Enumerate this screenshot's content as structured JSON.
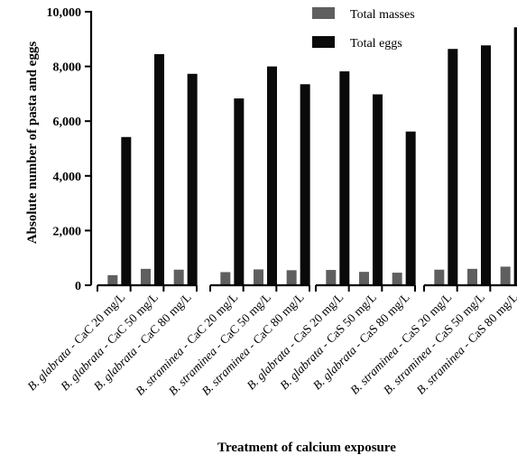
{
  "chart_data": {
    "type": "bar",
    "ylabel": "Absolute number of pasta and eggs",
    "xlabel": "Treatment of calcium exposure",
    "ylim": [
      0,
      10000
    ],
    "yticks": [
      0,
      2000,
      4000,
      6000,
      8000,
      10000
    ],
    "ytick_labels": [
      "0",
      "2,000",
      "4,000",
      "6,000",
      "8,000",
      "10,000"
    ],
    "legend_position": "top-right",
    "group_count": 4,
    "categories": [
      {
        "species": "B. glabrata",
        "treatment": " - CaC 20 mg/L"
      },
      {
        "species": "B. glabrata",
        "treatment": " - CaC 50 mg/L"
      },
      {
        "species": "B. glabrata",
        "treatment": " - CaC 80 mg/L"
      },
      {
        "species": "B. straminea",
        "treatment": " - CaC 20 mg/L"
      },
      {
        "species": "B. straminea",
        "treatment": " - CaC 50 mg/L"
      },
      {
        "species": "B. straminea",
        "treatment": " - CaC 80 mg/L"
      },
      {
        "species": "B. glabrata",
        "treatment": " - CaS 20 mg/L"
      },
      {
        "species": "B. glabrata",
        "treatment": " - CaS 50 mg/L"
      },
      {
        "species": "B. glabrata",
        "treatment": " - CaS 80 mg/L"
      },
      {
        "species": "B. straminea",
        "treatment": " - CaS 20 mg/L"
      },
      {
        "species": "B. straminea",
        "treatment": " - CaS 50 mg/L"
      },
      {
        "species": "B. straminea",
        "treatment": " - CaS 80 mg/L"
      }
    ],
    "series": [
      {
        "name": "Total masses",
        "color": "#5f5f5f",
        "values": [
          370,
          600,
          570,
          480,
          580,
          550,
          560,
          490,
          460,
          570,
          600,
          680
        ]
      },
      {
        "name": "Total eggs",
        "color": "#0a0a0a",
        "values": [
          5420,
          8450,
          7730,
          6830,
          8000,
          7350,
          7820,
          6980,
          5620,
          8640,
          8770,
          9430
        ]
      }
    ]
  }
}
